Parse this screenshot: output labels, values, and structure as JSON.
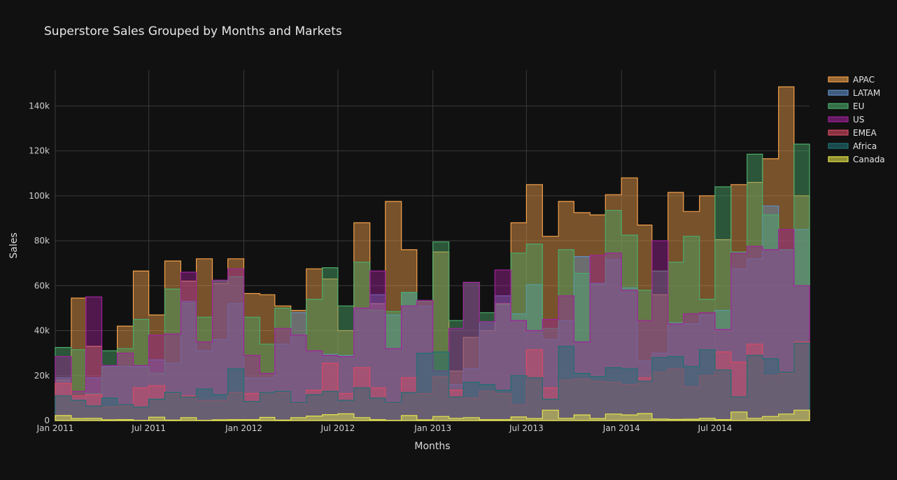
{
  "chart_data": {
    "type": "area",
    "title": "Superstore Sales Grouped by Months and Markets",
    "xlabel": "Months",
    "ylabel": "Sales",
    "ylim": [
      0,
      156000
    ],
    "x_range": [
      "2011-01-01",
      "2014-12-31"
    ],
    "x_ticks": [
      {
        "date": "2011-01-01",
        "label": "Jan 2011"
      },
      {
        "date": "2011-07-01",
        "label": "Jul 2011"
      },
      {
        "date": "2012-01-01",
        "label": "Jan 2012"
      },
      {
        "date": "2012-07-01",
        "label": "Jul 2012"
      },
      {
        "date": "2013-01-01",
        "label": "Jan 2013"
      },
      {
        "date": "2013-07-01",
        "label": "Jul 2013"
      },
      {
        "date": "2014-01-01",
        "label": "Jan 2014"
      },
      {
        "date": "2014-07-01",
        "label": "Jul 2014"
      }
    ],
    "y_ticks": [
      {
        "value": 0,
        "label": "0"
      },
      {
        "value": 20000,
        "label": "20k"
      },
      {
        "value": 40000,
        "label": "40k"
      },
      {
        "value": 60000,
        "label": "60k"
      },
      {
        "value": 80000,
        "label": "80k"
      },
      {
        "value": 100000,
        "label": "100k"
      },
      {
        "value": 120000,
        "label": "120k"
      },
      {
        "value": 140000,
        "label": "140k"
      }
    ],
    "grid": true,
    "legend_position": "top-right",
    "months": [
      "2011-01",
      "2011-02",
      "2011-03",
      "2011-04",
      "2011-05",
      "2011-06",
      "2011-07",
      "2011-08",
      "2011-09",
      "2011-10",
      "2011-11",
      "2011-12",
      "2012-01",
      "2012-02",
      "2012-03",
      "2012-04",
      "2012-05",
      "2012-06",
      "2012-07",
      "2012-08",
      "2012-09",
      "2012-10",
      "2012-11",
      "2012-12",
      "2013-01",
      "2013-02",
      "2013-03",
      "2013-04",
      "2013-05",
      "2013-06",
      "2013-07",
      "2013-08",
      "2013-09",
      "2013-10",
      "2013-11",
      "2013-12",
      "2014-01",
      "2014-02",
      "2014-03",
      "2014-04",
      "2014-05",
      "2014-06",
      "2014-07",
      "2014-08",
      "2014-09",
      "2014-10",
      "2014-11",
      "2014-12"
    ],
    "series": [
      {
        "name": "APAC",
        "color": "#f4a14b",
        "values": [
          18000,
          54500,
          33000,
          24000,
          42000,
          66500,
          47000,
          71000,
          62000,
          72000,
          61000,
          72000,
          56500,
          56000,
          51000,
          49000,
          67500,
          63000,
          40000,
          88000,
          52000,
          97500,
          76000,
          53000,
          75000,
          22000,
          37000,
          40000,
          52000,
          88000,
          105000,
          82000,
          97500,
          92500,
          91500,
          100500,
          108000,
          87000,
          56000,
          101500,
          93000,
          100000,
          80500,
          105000,
          106000,
          116500,
          148500,
          100000
        ]
      },
      {
        "name": "LATAM",
        "color": "#5f8dc4",
        "values": [
          19000,
          10000,
          19000,
          24000,
          24000,
          24000,
          27000,
          25500,
          53000,
          31000,
          36000,
          52000,
          19000,
          19000,
          34000,
          48000,
          31000,
          29500,
          29000,
          50000,
          56000,
          47000,
          57000,
          51000,
          22000,
          16000,
          23000,
          44000,
          55500,
          47500,
          60500,
          36000,
          44500,
          73000,
          61000,
          71500,
          59000,
          26500,
          30000,
          43500,
          43000,
          47000,
          49000,
          67500,
          72000,
          95500,
          76000,
          85000
        ]
      },
      {
        "name": "EU",
        "color": "#4cab6a",
        "values": [
          32500,
          31500,
          12000,
          31000,
          32000,
          45000,
          21000,
          58500,
          52000,
          46000,
          62000,
          64000,
          46000,
          34000,
          50000,
          38000,
          54000,
          68000,
          51000,
          70500,
          49000,
          48500,
          57000,
          53000,
          79500,
          44500,
          61500,
          48000,
          51500,
          74500,
          78500,
          41000,
          76000,
          65500,
          60500,
          93500,
          82500,
          58000,
          66500,
          70500,
          82000,
          54000,
          104000,
          75000,
          118500,
          91500,
          76000,
          123000
        ]
      },
      {
        "name": "US",
        "color": "#a0229a",
        "values": [
          28500,
          13000,
          55000,
          24500,
          30000,
          24500,
          38000,
          38500,
          66000,
          35000,
          62500,
          67500,
          29000,
          21000,
          41000,
          38000,
          31000,
          29000,
          28500,
          50000,
          66500,
          32000,
          51000,
          53500,
          22000,
          41000,
          61500,
          44000,
          67000,
          44500,
          40000,
          45000,
          55500,
          35000,
          73500,
          74500,
          58000,
          44500,
          80000,
          43000,
          47500,
          48000,
          40500,
          74500,
          77500,
          76000,
          85000,
          60000
        ]
      },
      {
        "name": "EMEA",
        "color": "#d84a64",
        "values": [
          16500,
          11000,
          11500,
          6000,
          6500,
          14500,
          15500,
          12000,
          11000,
          9000,
          9000,
          12500,
          12000,
          12500,
          12500,
          7500,
          13500,
          25500,
          12000,
          23500,
          14500,
          7500,
          19000,
          12000,
          19500,
          13500,
          10000,
          13000,
          12000,
          7000,
          31500,
          14500,
          18000,
          18500,
          17500,
          17000,
          16000,
          19000,
          21500,
          23000,
          15000,
          20000,
          30500,
          26000,
          34000,
          20000,
          21000,
          35000
        ]
      },
      {
        "name": "Africa",
        "color": "#1f6f73",
        "values": [
          11000,
          9000,
          6500,
          10000,
          7000,
          6000,
          9500,
          12500,
          10500,
          14000,
          11500,
          23000,
          8500,
          12500,
          13000,
          8000,
          11500,
          13000,
          9000,
          14500,
          10000,
          8000,
          12500,
          30000,
          30500,
          10500,
          17000,
          16000,
          13500,
          20000,
          19000,
          9500,
          33000,
          21000,
          19500,
          23500,
          23000,
          17500,
          28000,
          28500,
          24000,
          31500,
          22500,
          10500,
          29000,
          27500,
          21500,
          34500
        ]
      },
      {
        "name": "Canada",
        "color": "#e6e64a",
        "values": [
          2200,
          900,
          1000,
          300,
          400,
          100,
          1500,
          200,
          1300,
          100,
          300,
          400,
          400,
          1400,
          200,
          1300,
          2000,
          2600,
          3000,
          1300,
          400,
          100,
          2200,
          300,
          1800,
          1000,
          1300,
          400,
          400,
          1600,
          900,
          4600,
          1000,
          2500,
          900,
          2900,
          2500,
          3100,
          700,
          500,
          600,
          1000,
          400,
          3800,
          1000,
          1800,
          2900,
          4600
        ]
      }
    ]
  }
}
